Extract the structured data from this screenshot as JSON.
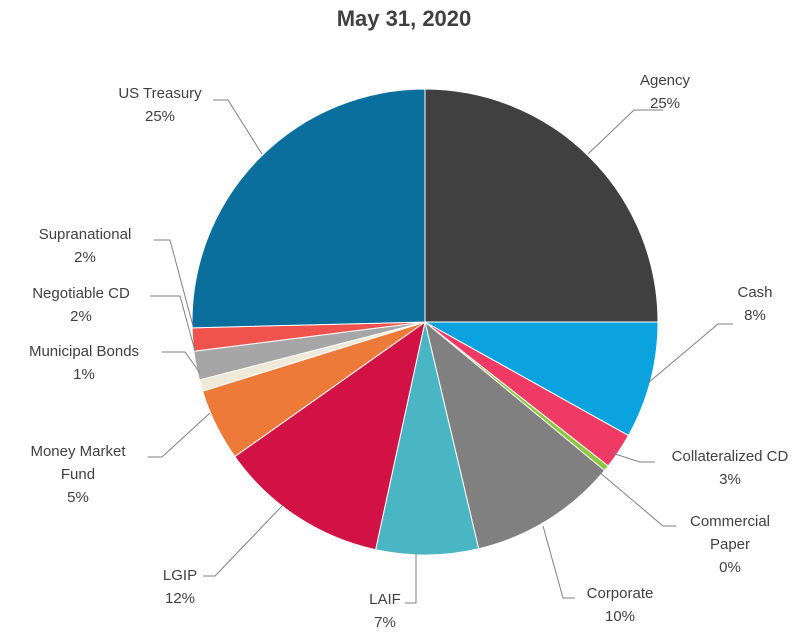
{
  "chart_data": {
    "type": "pie",
    "title": "May 31, 2020",
    "slices": [
      {
        "label": "Agency",
        "pct_label": "25%",
        "value": 25.0,
        "color": "#404040"
      },
      {
        "label": "Cash",
        "pct_label": "8%",
        "value": 8.1,
        "color": "#0aa3e0"
      },
      {
        "label": "Collateralized CD",
        "pct_label": "3%",
        "value": 2.5,
        "color": "#ee3a64"
      },
      {
        "label": "Commercial Paper",
        "pct_label": "0%",
        "value": 0.4,
        "color": "#8dc63f"
      },
      {
        "label": "Corporate",
        "pct_label": "10%",
        "value": 10.3,
        "color": "#808080"
      },
      {
        "label": "LAIF",
        "pct_label": "7%",
        "value": 7.1,
        "color": "#4bb6c3"
      },
      {
        "label": "LGIP",
        "pct_label": "12%",
        "value": 11.8,
        "color": "#d21245"
      },
      {
        "label": "Money Market Fund",
        "pct_label": "5%",
        "value": 5.0,
        "color": "#ee7a3a"
      },
      {
        "label": "Municipal Bonds",
        "pct_label": "1%",
        "value": 0.8,
        "color": "#eee9d8"
      },
      {
        "label": "Negotiable CD",
        "pct_label": "2%",
        "value": 2.0,
        "color": "#a6a6a6"
      },
      {
        "label": "Supranational",
        "pct_label": "2%",
        "value": 1.6,
        "color": "#f0534e"
      },
      {
        "label": "US Treasury",
        "pct_label": "25%",
        "value": 25.4,
        "color": "#0a6f9c"
      }
    ]
  }
}
